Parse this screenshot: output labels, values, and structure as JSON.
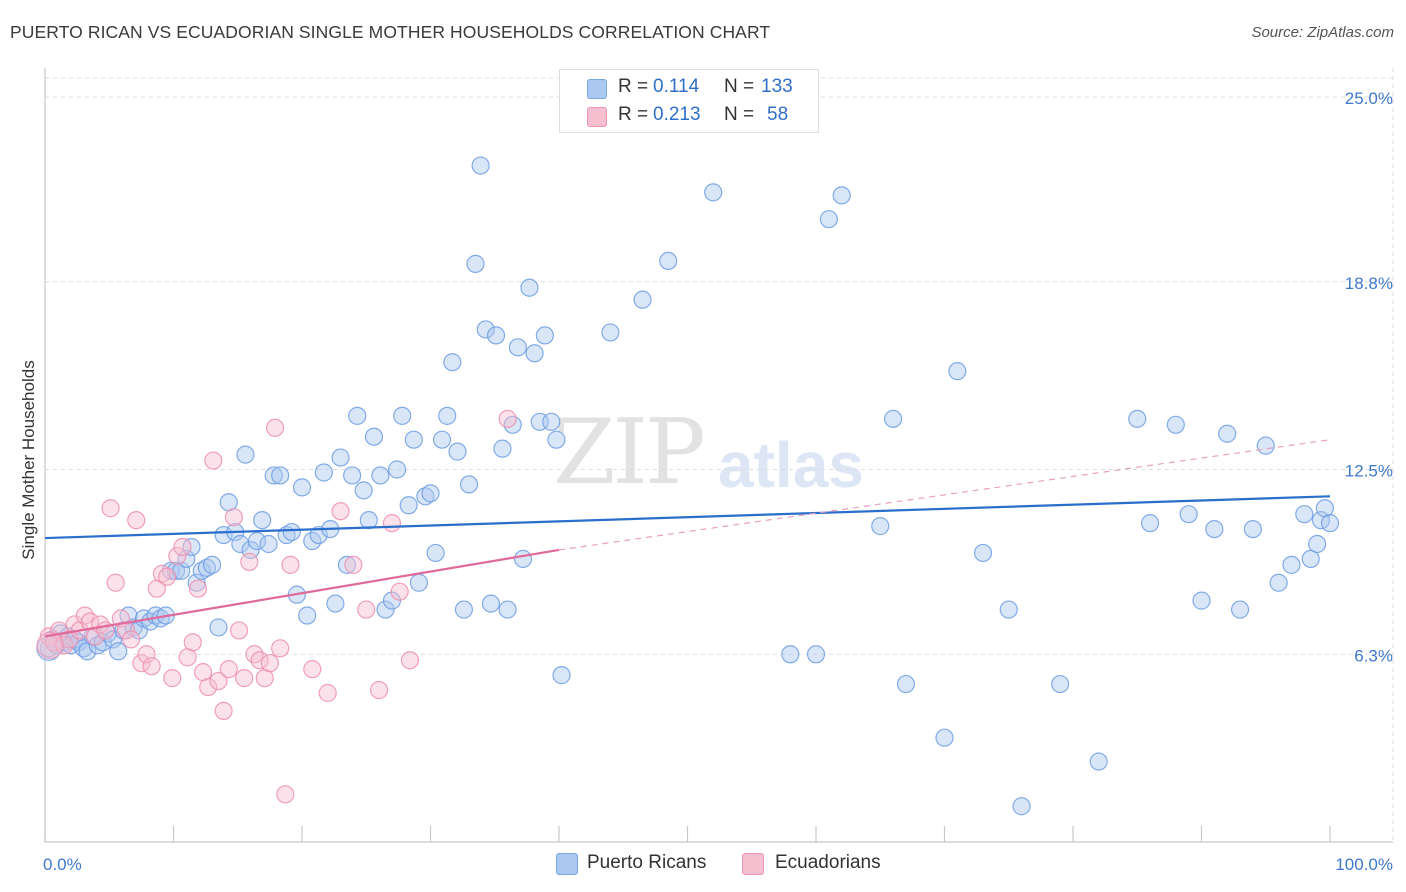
{
  "title": "PUERTO RICAN VS ECUADORIAN SINGLE MOTHER HOUSEHOLDS CORRELATION CHART",
  "source": "Source: ZipAtlas.com",
  "watermark": {
    "zip": "ZIP",
    "atlas": "atlas"
  },
  "legend": {
    "rows": [
      {
        "r_label": "R =",
        "r_value": "0.114",
        "n_label": "N =",
        "n_value": "133",
        "color": "#aac8f0"
      },
      {
        "r_label": "R =",
        "r_value": "0.213",
        "n_label": "N =",
        "n_value": "58",
        "color": "#f7bfd0"
      }
    ]
  },
  "bottom_legend": [
    {
      "label": "Puerto Ricans",
      "color": "#aac8f0"
    },
    {
      "label": "Ecuadorians",
      "color": "#f7bfd0"
    }
  ],
  "chart_data": {
    "type": "scatter",
    "title": "PUERTO RICAN VS ECUADORIAN SINGLE MOTHER HOUSEHOLDS CORRELATION CHART",
    "xlabel": "",
    "ylabel": "Single Mother Households",
    "xlim": [
      0,
      100
    ],
    "ylim": [
      0,
      25.0
    ],
    "x_tick_labels": [
      "0.0%",
      "100.0%"
    ],
    "y_ticks": [
      6.3,
      12.5,
      18.8,
      25.0
    ],
    "y_tick_labels": [
      "6.3%",
      "12.5%",
      "18.8%",
      "25.0%"
    ],
    "grid": true,
    "series": [
      {
        "name": "Puerto Ricans",
        "color": "#6f9ee3",
        "fill": "#aac8f0",
        "R": 0.114,
        "N": 133,
        "trend": {
          "x0": 0,
          "y0": 10.2,
          "x1": 100,
          "y1": 11.6,
          "dashed_from": 100
        },
        "points": [
          [
            0.3,
            6.5
          ],
          [
            0.6,
            6.8
          ],
          [
            0.9,
            6.6
          ],
          [
            1.2,
            7.0
          ],
          [
            1.5,
            6.7
          ],
          [
            1.8,
            6.9
          ],
          [
            2.0,
            6.6
          ],
          [
            2.3,
            6.8
          ],
          [
            2.6,
            6.7
          ],
          [
            3.0,
            6.5
          ],
          [
            3.3,
            6.4
          ],
          [
            3.7,
            6.9
          ],
          [
            4.1,
            6.6
          ],
          [
            4.5,
            6.7
          ],
          [
            4.9,
            7.0
          ],
          [
            5.3,
            6.8
          ],
          [
            5.7,
            6.4
          ],
          [
            6.1,
            7.1
          ],
          [
            6.5,
            7.6
          ],
          [
            6.9,
            7.2
          ],
          [
            7.3,
            7.1
          ],
          [
            7.7,
            7.5
          ],
          [
            8.2,
            7.4
          ],
          [
            8.6,
            7.6
          ],
          [
            9.0,
            7.5
          ],
          [
            9.4,
            7.6
          ],
          [
            9.8,
            9.1
          ],
          [
            10.2,
            9.1
          ],
          [
            10.6,
            9.1
          ],
          [
            11.0,
            9.5
          ],
          [
            11.4,
            9.9
          ],
          [
            11.8,
            8.7
          ],
          [
            12.2,
            9.1
          ],
          [
            12.6,
            9.2
          ],
          [
            13.0,
            9.3
          ],
          [
            13.5,
            7.2
          ],
          [
            13.9,
            10.3
          ],
          [
            14.3,
            11.4
          ],
          [
            14.8,
            10.4
          ],
          [
            15.2,
            10.0
          ],
          [
            15.6,
            13.0
          ],
          [
            16.0,
            9.8
          ],
          [
            16.5,
            10.1
          ],
          [
            16.9,
            10.8
          ],
          [
            17.4,
            10.0
          ],
          [
            17.8,
            12.3
          ],
          [
            18.3,
            12.3
          ],
          [
            18.8,
            10.3
          ],
          [
            19.2,
            10.4
          ],
          [
            19.6,
            8.3
          ],
          [
            20.0,
            11.9
          ],
          [
            20.4,
            7.6
          ],
          [
            20.8,
            10.1
          ],
          [
            21.3,
            10.3
          ],
          [
            21.7,
            12.4
          ],
          [
            22.2,
            10.5
          ],
          [
            22.6,
            8.0
          ],
          [
            23.0,
            12.9
          ],
          [
            23.5,
            9.3
          ],
          [
            23.9,
            12.3
          ],
          [
            24.3,
            14.3
          ],
          [
            24.8,
            11.8
          ],
          [
            25.2,
            10.8
          ],
          [
            25.6,
            13.6
          ],
          [
            26.1,
            12.3
          ],
          [
            26.5,
            7.8
          ],
          [
            27.0,
            8.1
          ],
          [
            27.4,
            12.5
          ],
          [
            27.8,
            14.3
          ],
          [
            28.3,
            11.3
          ],
          [
            28.7,
            13.5
          ],
          [
            29.1,
            8.7
          ],
          [
            29.6,
            11.6
          ],
          [
            30.0,
            11.7
          ],
          [
            30.4,
            9.7
          ],
          [
            30.9,
            13.5
          ],
          [
            31.3,
            14.3
          ],
          [
            31.7,
            16.1
          ],
          [
            32.1,
            13.1
          ],
          [
            32.6,
            7.8
          ],
          [
            33.0,
            12.0
          ],
          [
            33.5,
            19.4
          ],
          [
            33.9,
            22.7
          ],
          [
            34.3,
            17.2
          ],
          [
            34.7,
            8.0
          ],
          [
            35.1,
            17.0
          ],
          [
            35.6,
            13.2
          ],
          [
            36.0,
            7.8
          ],
          [
            36.4,
            14.0
          ],
          [
            36.8,
            16.6
          ],
          [
            37.2,
            9.5
          ],
          [
            37.7,
            18.6
          ],
          [
            38.1,
            16.4
          ],
          [
            38.5,
            14.1
          ],
          [
            38.9,
            17.0
          ],
          [
            39.4,
            14.1
          ],
          [
            39.8,
            13.5
          ],
          [
            40.2,
            5.6
          ],
          [
            44.0,
            17.1
          ],
          [
            46.5,
            18.2
          ],
          [
            48.5,
            19.5
          ],
          [
            52.0,
            21.8
          ],
          [
            58.0,
            6.3
          ],
          [
            60.0,
            6.3
          ],
          [
            61.0,
            20.9
          ],
          [
            62.0,
            21.7
          ],
          [
            65.0,
            10.6
          ],
          [
            66.0,
            14.2
          ],
          [
            67.0,
            5.3
          ],
          [
            70.0,
            3.5
          ],
          [
            71.0,
            15.8
          ],
          [
            73.0,
            9.7
          ],
          [
            75.0,
            7.8
          ],
          [
            76.0,
            1.2
          ],
          [
            79.0,
            5.3
          ],
          [
            82.0,
            2.7
          ],
          [
            85.0,
            14.2
          ],
          [
            86.0,
            10.7
          ],
          [
            88.0,
            14.0
          ],
          [
            89.0,
            11.0
          ],
          [
            90.0,
            8.1
          ],
          [
            91.0,
            10.5
          ],
          [
            92.0,
            13.7
          ],
          [
            93.0,
            7.8
          ],
          [
            94.0,
            10.5
          ],
          [
            95.0,
            13.3
          ],
          [
            96.0,
            8.7
          ],
          [
            97.0,
            9.3
          ],
          [
            98.0,
            11.0
          ],
          [
            98.5,
            9.5
          ],
          [
            99.0,
            10.0
          ],
          [
            99.3,
            10.8
          ],
          [
            99.6,
            11.2
          ],
          [
            100.0,
            10.7
          ]
        ]
      },
      {
        "name": "Ecuadorians",
        "color": "#ec8fb0",
        "fill": "#f7bfd0",
        "R": 0.213,
        "N": 58,
        "trend": {
          "x0": 0,
          "y0": 6.9,
          "x1": 40,
          "y1": 9.8,
          "dashed_x1": 100,
          "dashed_y1": 13.5
        },
        "points": [
          [
            0.3,
            6.9
          ],
          [
            0.7,
            6.7
          ],
          [
            1.1,
            7.1
          ],
          [
            1.5,
            6.6
          ],
          [
            1.9,
            6.8
          ],
          [
            2.3,
            7.3
          ],
          [
            2.7,
            7.1
          ],
          [
            3.1,
            7.6
          ],
          [
            3.5,
            7.4
          ],
          [
            3.9,
            6.9
          ],
          [
            4.3,
            7.3
          ],
          [
            4.7,
            7.1
          ],
          [
            5.1,
            11.2
          ],
          [
            5.5,
            8.7
          ],
          [
            5.9,
            7.5
          ],
          [
            6.3,
            7.1
          ],
          [
            6.7,
            6.8
          ],
          [
            7.1,
            10.8
          ],
          [
            7.5,
            6.0
          ],
          [
            7.9,
            6.3
          ],
          [
            8.3,
            5.9
          ],
          [
            8.7,
            8.5
          ],
          [
            9.1,
            9.0
          ],
          [
            9.5,
            8.9
          ],
          [
            9.9,
            5.5
          ],
          [
            10.3,
            9.6
          ],
          [
            10.7,
            9.9
          ],
          [
            11.1,
            6.2
          ],
          [
            11.5,
            6.7
          ],
          [
            11.9,
            8.5
          ],
          [
            12.3,
            5.7
          ],
          [
            12.7,
            5.2
          ],
          [
            13.1,
            12.8
          ],
          [
            13.5,
            5.4
          ],
          [
            13.9,
            4.4
          ],
          [
            14.3,
            5.8
          ],
          [
            14.7,
            10.9
          ],
          [
            15.1,
            7.1
          ],
          [
            15.5,
            5.5
          ],
          [
            15.9,
            9.4
          ],
          [
            16.3,
            6.3
          ],
          [
            16.7,
            6.1
          ],
          [
            17.1,
            5.5
          ],
          [
            17.5,
            6.0
          ],
          [
            17.9,
            13.9
          ],
          [
            18.3,
            6.5
          ],
          [
            18.7,
            1.6
          ],
          [
            19.1,
            9.3
          ],
          [
            20.8,
            5.8
          ],
          [
            22.0,
            5.0
          ],
          [
            23.0,
            11.1
          ],
          [
            24.0,
            9.3
          ],
          [
            25.0,
            7.8
          ],
          [
            26.0,
            5.1
          ],
          [
            27.0,
            10.7
          ],
          [
            27.6,
            8.4
          ],
          [
            28.4,
            6.1
          ],
          [
            36.0,
            14.2
          ]
        ]
      }
    ]
  }
}
